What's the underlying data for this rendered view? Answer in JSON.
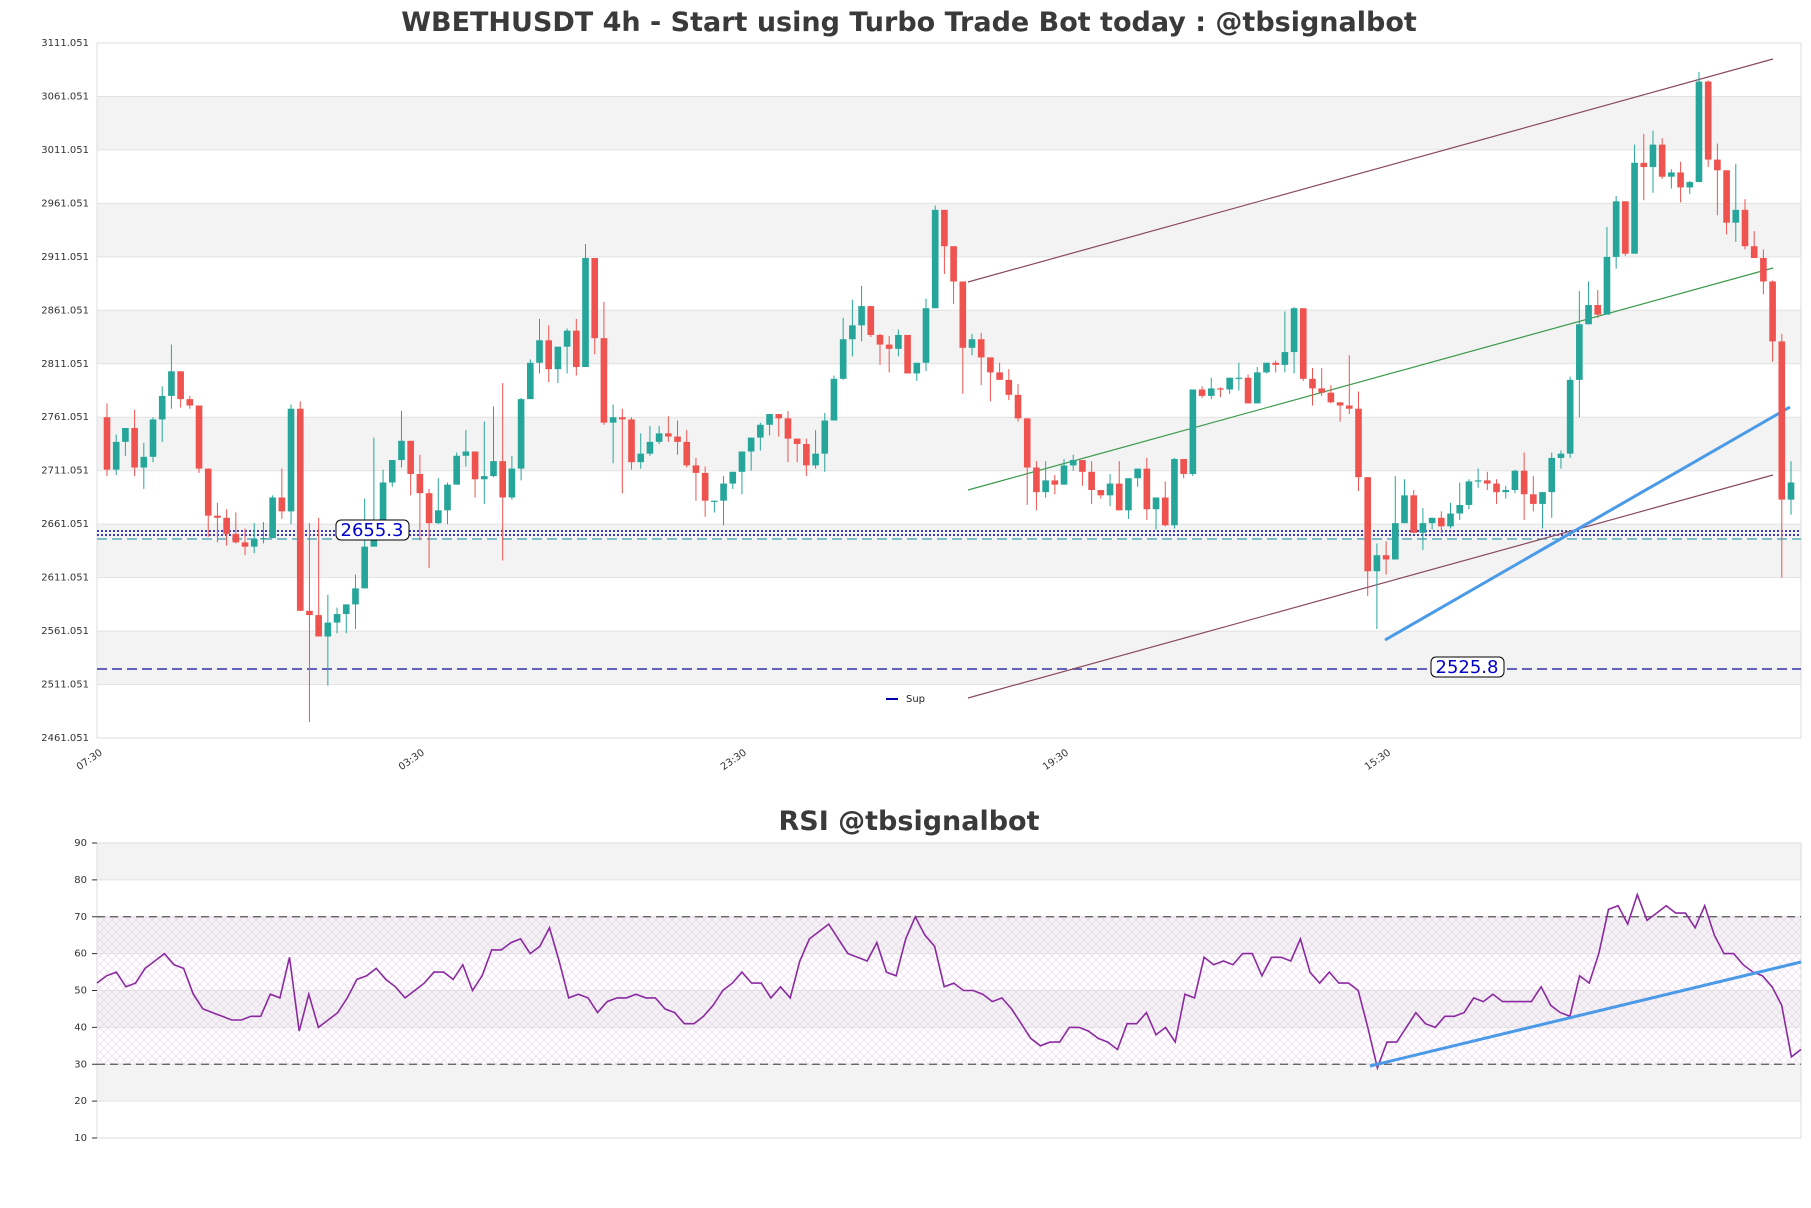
{
  "chart_data": [
    {
      "type": "candlestick",
      "title": "WBETHUSDT 4h - Start using Turbo Trade Bot today : @tbsignalbot",
      "ylim": [
        2461.051,
        3111.051
      ],
      "yticks": [
        "3111.051",
        "3061.051",
        "3011.051",
        "2961.051",
        "2911.051",
        "2861.051",
        "2811.051",
        "2761.051",
        "2711.051",
        "2661.051",
        "2611.051",
        "2561.051",
        "2511.051",
        "2461.051"
      ],
      "xticks": [
        {
          "label": "07:30",
          "index": 0
        },
        {
          "label": "03:30",
          "index": 35
        },
        {
          "label": "23:30",
          "index": 70
        },
        {
          "label": "19:30",
          "index": 105
        },
        {
          "label": "15:30",
          "index": 140
        }
      ],
      "candles": [
        [
          2761,
          2712,
          2774,
          2706
        ],
        [
          2712,
          2738,
          2745,
          2707
        ],
        [
          2738,
          2751,
          2751,
          2725
        ],
        [
          2751,
          2714,
          2768,
          2706
        ],
        [
          2714,
          2724,
          2737,
          2694
        ],
        [
          2724,
          2759,
          2761,
          2719
        ],
        [
          2759,
          2781,
          2790,
          2738
        ],
        [
          2781,
          2804,
          2829,
          2769
        ],
        [
          2804,
          2778,
          2804,
          2770
        ],
        [
          2778,
          2772,
          2781,
          2769
        ],
        [
          2772,
          2713,
          2772,
          2709
        ],
        [
          2713,
          2669,
          2713,
          2649
        ],
        [
          2669,
          2667,
          2681,
          2644
        ],
        [
          2667,
          2652,
          2675,
          2641
        ],
        [
          2652,
          2644,
          2672,
          2643
        ],
        [
          2644,
          2640,
          2657,
          2632
        ],
        [
          2640,
          2647,
          2662,
          2634
        ],
        [
          2647,
          2648,
          2663,
          2643
        ],
        [
          2648,
          2686,
          2688,
          2649
        ],
        [
          2686,
          2673,
          2713,
          2666
        ],
        [
          2673,
          2769,
          2773,
          2661
        ],
        [
          2769,
          2580,
          2776,
          2580
        ],
        [
          2580,
          2576,
          2662,
          2476
        ],
        [
          2576,
          2556,
          2667,
          2556
        ],
        [
          2556,
          2569,
          2595,
          2510
        ],
        [
          2569,
          2577,
          2583,
          2559
        ],
        [
          2577,
          2586,
          2583,
          2559
        ],
        [
          2586,
          2601,
          2614,
          2563
        ],
        [
          2601,
          2640,
          2685,
          2631
        ],
        [
          2640,
          2661,
          2742,
          2647
        ],
        [
          2661,
          2700,
          2712,
          2671
        ],
        [
          2700,
          2721,
          2714,
          2696
        ],
        [
          2721,
          2739,
          2767,
          2714
        ],
        [
          2739,
          2708,
          2739,
          2688
        ],
        [
          2708,
          2690,
          2726,
          2646
        ],
        [
          2690,
          2662,
          2694,
          2620
        ],
        [
          2662,
          2674,
          2704,
          2661
        ],
        [
          2674,
          2698,
          2700,
          2661
        ],
        [
          2698,
          2725,
          2728,
          2698
        ],
        [
          2725,
          2729,
          2749,
          2715
        ],
        [
          2729,
          2703,
          2729,
          2686
        ],
        [
          2703,
          2706,
          2757,
          2680
        ],
        [
          2706,
          2720,
          2771,
          2705
        ],
        [
          2720,
          2686,
          2793,
          2627
        ],
        [
          2686,
          2713,
          2725,
          2684
        ],
        [
          2713,
          2778,
          2779,
          2702
        ],
        [
          2778,
          2812,
          2815,
          2797
        ],
        [
          2812,
          2833,
          2853,
          2802
        ],
        [
          2833,
          2806,
          2847,
          2794
        ],
        [
          2806,
          2827,
          2827,
          2793
        ],
        [
          2827,
          2842,
          2844,
          2802
        ],
        [
          2842,
          2808,
          2853,
          2800
        ],
        [
          2808,
          2910,
          2923,
          2846
        ],
        [
          2910,
          2835,
          2910,
          2820
        ],
        [
          2835,
          2756,
          2869,
          2754
        ],
        [
          2756,
          2761,
          2773,
          2718
        ],
        [
          2761,
          2759,
          2769,
          2690
        ],
        [
          2759,
          2719,
          2761,
          2712
        ],
        [
          2719,
          2727,
          2746,
          2713
        ],
        [
          2727,
          2738,
          2753,
          2725
        ],
        [
          2738,
          2746,
          2753,
          2736
        ],
        [
          2746,
          2743,
          2762,
          2738
        ],
        [
          2743,
          2738,
          2758,
          2726
        ],
        [
          2738,
          2716,
          2749,
          2714
        ],
        [
          2716,
          2709,
          2723,
          2683
        ],
        [
          2709,
          2683,
          2715,
          2668
        ],
        [
          2683,
          2683,
          2675,
          2672
        ],
        [
          2683,
          2699,
          2706,
          2660
        ],
        [
          2699,
          2710,
          2710,
          2694
        ],
        [
          2710,
          2729,
          2727,
          2689
        ],
        [
          2729,
          2742,
          2741,
          2711
        ],
        [
          2742,
          2754,
          2756,
          2730
        ],
        [
          2754,
          2764,
          2762,
          2744
        ],
        [
          2764,
          2760,
          2762,
          2743
        ],
        [
          2760,
          2741,
          2767,
          2719
        ],
        [
          2741,
          2736,
          2735,
          2719
        ],
        [
          2736,
          2716,
          2741,
          2706
        ],
        [
          2716,
          2727,
          2749,
          2713
        ],
        [
          2727,
          2758,
          2765,
          2710
        ],
        [
          2758,
          2797,
          2800,
          2758
        ],
        [
          2797,
          2834,
          2854,
          2796
        ],
        [
          2834,
          2847,
          2871,
          2818
        ],
        [
          2847,
          2865,
          2884,
          2832
        ],
        [
          2865,
          2838,
          2864,
          2836
        ],
        [
          2838,
          2829,
          2839,
          2810
        ],
        [
          2829,
          2825,
          2837,
          2803
        ],
        [
          2825,
          2838,
          2843,
          2818
        ],
        [
          2838,
          2802,
          2833,
          2806
        ],
        [
          2802,
          2812,
          2812,
          2795
        ],
        [
          2812,
          2863,
          2872,
          2804
        ],
        [
          2863,
          2955,
          2959,
          2881
        ],
        [
          2955,
          2921,
          2953,
          2895
        ],
        [
          2921,
          2888,
          2901,
          2867
        ],
        [
          2888,
          2826,
          2870,
          2783
        ],
        [
          2826,
          2834,
          2839,
          2819
        ],
        [
          2834,
          2817,
          2840,
          2791
        ],
        [
          2817,
          2803,
          2816,
          2776
        ],
        [
          2803,
          2796,
          2812,
          2796
        ],
        [
          2796,
          2782,
          2806,
          2777
        ],
        [
          2782,
          2760,
          2792,
          2757
        ],
        [
          2760,
          2714,
          2760,
          2679
        ],
        [
          2714,
          2691,
          2720,
          2674
        ],
        [
          2691,
          2702,
          2720,
          2686
        ],
        [
          2702,
          2698,
          2707,
          2689
        ],
        [
          2698,
          2716,
          2722,
          2701
        ],
        [
          2716,
          2721,
          2726,
          2711
        ],
        [
          2721,
          2710,
          2712,
          2697
        ],
        [
          2710,
          2693,
          2720,
          2680
        ],
        [
          2693,
          2688,
          2692,
          2685
        ],
        [
          2688,
          2699,
          2708,
          2678
        ],
        [
          2699,
          2674,
          2720,
          2677
        ],
        [
          2674,
          2704,
          2704,
          2666
        ],
        [
          2704,
          2713,
          2713,
          2696
        ],
        [
          2713,
          2675,
          2723,
          2665
        ],
        [
          2675,
          2686,
          2685,
          2656
        ],
        [
          2686,
          2660,
          2701,
          2659
        ],
        [
          2660,
          2722,
          2723,
          2657
        ],
        [
          2722,
          2708,
          2721,
          2704
        ],
        [
          2708,
          2787,
          2787,
          2706
        ],
        [
          2787,
          2781,
          2790,
          2779
        ],
        [
          2781,
          2788,
          2798,
          2778
        ],
        [
          2788,
          2787,
          2789,
          2780
        ],
        [
          2787,
          2798,
          2798,
          2783
        ],
        [
          2798,
          2798,
          2812,
          2786
        ],
        [
          2798,
          2774,
          2801,
          2781
        ],
        [
          2774,
          2803,
          2808,
          2783
        ],
        [
          2803,
          2812,
          2809,
          2802
        ],
        [
          2812,
          2810,
          2814,
          2803
        ],
        [
          2810,
          2822,
          2860,
          2803
        ],
        [
          2822,
          2863,
          2864,
          2802
        ],
        [
          2863,
          2797,
          2863,
          2795
        ],
        [
          2797,
          2788,
          2807,
          2772
        ],
        [
          2788,
          2784,
          2807,
          2781
        ],
        [
          2784,
          2775,
          2791,
          2774
        ],
        [
          2775,
          2772,
          2770,
          2757
        ],
        [
          2772,
          2769,
          2819,
          2764
        ],
        [
          2769,
          2705,
          2785,
          2692
        ],
        [
          2705,
          2617,
          2705,
          2594
        ],
        [
          2617,
          2632,
          2643,
          2563
        ],
        [
          2632,
          2628,
          2645,
          2614
        ],
        [
          2628,
          2662,
          2706,
          2630
        ],
        [
          2662,
          2688,
          2703,
          2676
        ],
        [
          2688,
          2653,
          2693,
          2654
        ],
        [
          2653,
          2662,
          2676,
          2637
        ],
        [
          2662,
          2667,
          2658,
          2656
        ],
        [
          2667,
          2659,
          2673,
          2653
        ],
        [
          2659,
          2671,
          2681,
          2657
        ],
        [
          2671,
          2679,
          2700,
          2665
        ],
        [
          2679,
          2701,
          2703,
          2675
        ],
        [
          2701,
          2702,
          2713,
          2695
        ],
        [
          2702,
          2699,
          2710,
          2693
        ],
        [
          2699,
          2691,
          2703,
          2680
        ],
        [
          2691,
          2693,
          2697,
          2685
        ],
        [
          2693,
          2711,
          2712,
          2690
        ],
        [
          2711,
          2689,
          2728,
          2665
        ],
        [
          2689,
          2680,
          2706,
          2673
        ],
        [
          2680,
          2691,
          2689,
          2657
        ],
        [
          2691,
          2723,
          2728,
          2667
        ],
        [
          2723,
          2727,
          2730,
          2713
        ],
        [
          2727,
          2796,
          2799,
          2723
        ],
        [
          2796,
          2848,
          2879,
          2761
        ],
        [
          2848,
          2866,
          2888,
          2862
        ],
        [
          2866,
          2857,
          2880,
          2854
        ],
        [
          2857,
          2911,
          2939,
          2862
        ],
        [
          2911,
          2963,
          2968,
          2900
        ],
        [
          2963,
          2914,
          2957,
          2912
        ],
        [
          2914,
          2999,
          3016,
          2950
        ],
        [
          2999,
          2995,
          3026,
          2964
        ],
        [
          2995,
          3016,
          3029,
          2971
        ],
        [
          3016,
          2986,
          3022,
          2984
        ],
        [
          2986,
          2990,
          2993,
          2975
        ],
        [
          2990,
          2976,
          3000,
          2962
        ],
        [
          2976,
          2981,
          2982,
          2970
        ],
        [
          2981,
          3075,
          3084,
          2999
        ],
        [
          3075,
          3002,
          3076,
          2995
        ],
        [
          3002,
          2992,
          3017,
          2950
        ],
        [
          2992,
          2943,
          2988,
          2932
        ],
        [
          2943,
          2955,
          2998,
          2925
        ],
        [
          2955,
          2921,
          2965,
          2918
        ],
        [
          2921,
          2910,
          2935,
          2914
        ],
        [
          2910,
          2888,
          2918,
          2876
        ],
        [
          2888,
          2832,
          2889,
          2813
        ],
        [
          2832,
          2684,
          2839,
          2611
        ],
        [
          2684,
          2700,
          2720,
          2670
        ]
      ],
      "annotations": [
        {
          "text": "2655.3",
          "value": 2655.3
        },
        {
          "text": "2525.8",
          "value": 2525.8
        }
      ],
      "legend": [
        "Sup"
      ],
      "legend_position": "bottom-center"
    },
    {
      "type": "line",
      "title": "RSI @tbsignalbot",
      "ylim": [
        10,
        90
      ],
      "yticks": [
        "90",
        "80",
        "70",
        "60",
        "50",
        "40",
        "30",
        "20",
        "10"
      ],
      "bands": [
        30,
        70
      ],
      "series": [
        {
          "values": [
            52,
            54,
            55,
            51,
            52,
            56,
            58,
            60,
            57,
            56,
            49,
            45,
            44,
            43,
            42,
            42,
            43,
            43,
            49,
            48,
            59,
            39,
            49,
            40,
            42,
            44,
            48,
            53,
            54,
            56,
            53,
            51,
            48,
            50,
            52,
            55,
            55,
            53,
            57,
            50,
            54,
            61,
            61,
            63,
            64,
            60,
            62,
            67,
            58,
            48,
            49,
            48,
            44,
            47,
            48,
            48,
            49,
            48,
            48,
            45,
            44,
            41,
            41,
            43,
            46,
            50,
            52,
            55,
            52,
            52,
            48,
            51,
            48,
            58,
            64,
            66,
            68,
            64,
            60,
            59,
            58,
            63,
            55,
            54,
            64,
            70,
            65,
            62,
            51,
            52,
            50,
            50,
            49,
            47,
            48,
            45,
            41,
            37,
            35,
            36,
            36,
            40,
            40,
            39,
            37,
            36,
            34,
            41,
            41,
            44,
            38,
            40,
            36,
            49,
            48,
            59,
            57,
            58,
            57,
            60,
            60,
            54,
            59,
            59,
            58,
            64,
            55,
            52,
            55,
            52,
            52,
            50,
            40,
            29,
            36,
            36,
            40,
            44,
            41,
            40,
            43,
            43,
            44,
            48,
            47,
            49,
            47,
            47,
            47,
            47,
            51,
            46,
            44,
            43,
            54,
            52,
            60,
            72,
            73,
            68,
            76,
            69,
            71,
            73,
            71,
            71,
            67,
            73,
            65,
            60,
            60,
            57,
            55,
            54,
            51,
            46,
            32,
            34
          ]
        }
      ]
    }
  ]
}
